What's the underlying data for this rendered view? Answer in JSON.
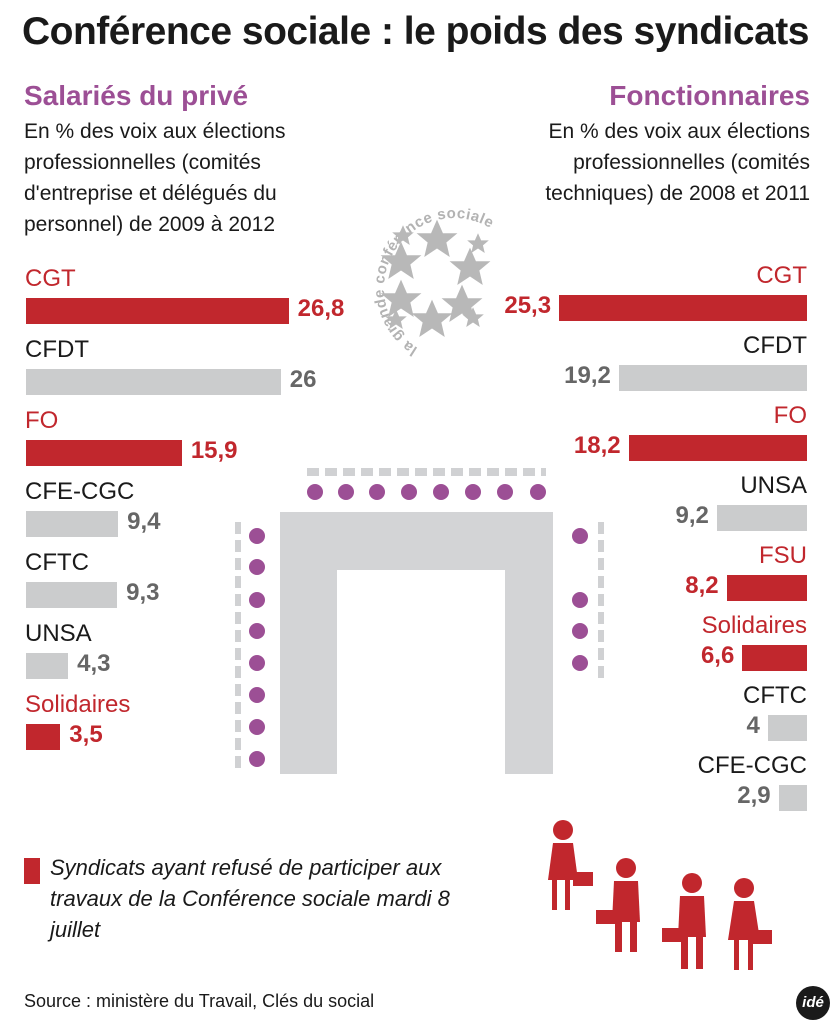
{
  "title": "Conférence sociale : le poids des syndicats",
  "colors": {
    "refused": "#c1272d",
    "participating": "#cbcccd",
    "accent": "#9c4f95",
    "dots": "#9c4f95",
    "figure": "#c1272d"
  },
  "chart_data": [
    {
      "type": "bar",
      "panel_title": "Salariés du privé",
      "subtitle": "En % des voix aux élections professionnelles (comités d'entreprise et délégués du personnel) de 2009 à 2012",
      "categories": [
        "CGT",
        "CFDT",
        "FO",
        "CFE-CGC",
        "CFTC",
        "UNSA",
        "Solidaires"
      ],
      "values": [
        26.8,
        26,
        15.9,
        9.4,
        9.3,
        4.3,
        3.5
      ],
      "value_labels": [
        "26,8",
        "26",
        "15,9",
        "9,4",
        "9,3",
        "4,3",
        "3,5"
      ],
      "refused": [
        true,
        false,
        true,
        false,
        false,
        false,
        true
      ],
      "orientation": "horizontal"
    },
    {
      "type": "bar",
      "panel_title": "Fonctionnaires",
      "subtitle": "En % des voix aux élections professionnelles (comités techniques) de 2008 et 2011",
      "categories": [
        "CGT",
        "CFDT",
        "FO",
        "UNSA",
        "FSU",
        "Solidaires",
        "CFTC",
        "CFE-CGC"
      ],
      "values": [
        25.3,
        19.2,
        18.2,
        9.2,
        8.2,
        6.6,
        4,
        2.9
      ],
      "value_labels": [
        "25,3",
        "19,2",
        "18,2",
        "9,2",
        "8,2",
        "6,6",
        "4",
        "2,9"
      ],
      "refused": [
        true,
        false,
        true,
        false,
        true,
        true,
        false,
        false
      ],
      "orientation": "horizontal"
    }
  ],
  "logo_text": "la grande conférence sociale",
  "legend": {
    "text": "Syndicats ayant refusé de participer aux travaux de la Conférence sociale mardi 8 juillet"
  },
  "source": "Source : ministère du Travail, Clés du social",
  "brand": "idé"
}
